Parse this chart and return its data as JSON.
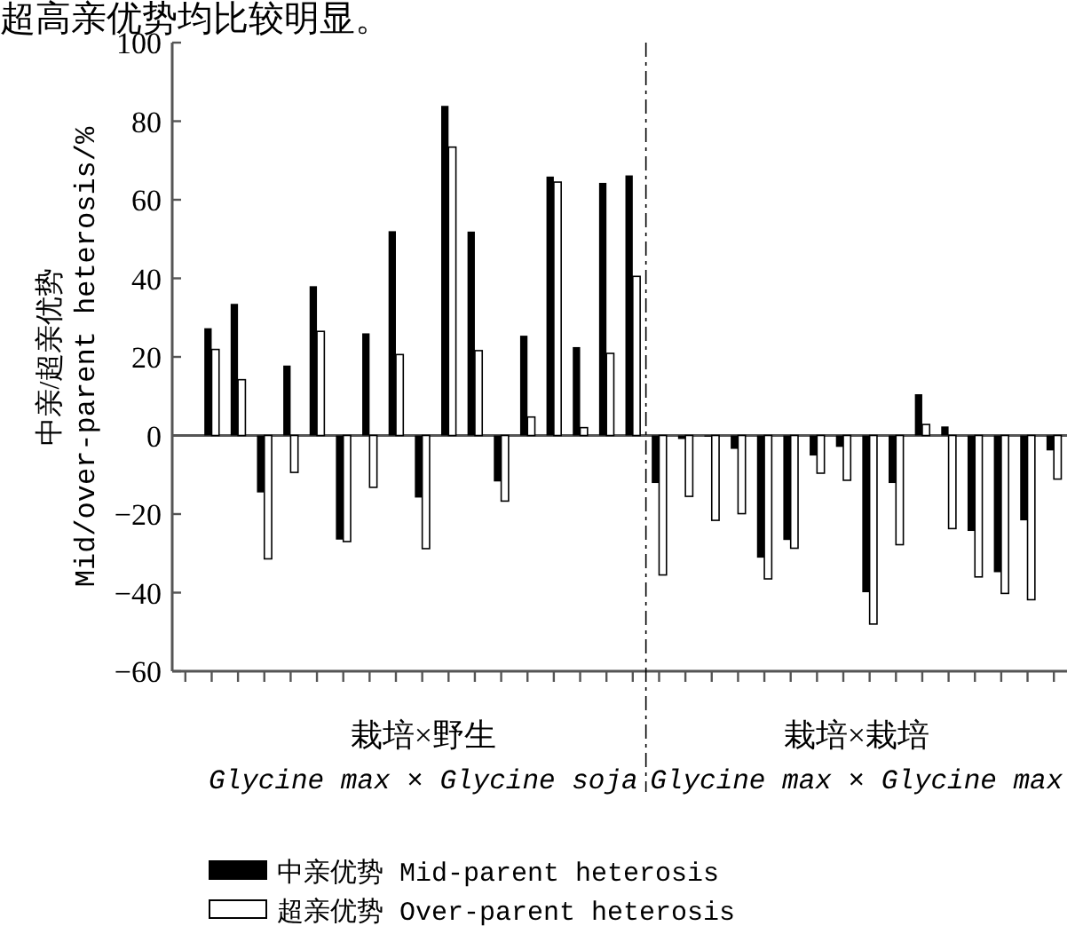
{
  "chart_data": {
    "type": "bar",
    "ylabel": "中亲/超亲优势\nMid/over-parent heterosis/%",
    "categories": [
      null,
      null,
      null,
      null,
      null,
      null,
      null,
      null,
      null,
      null,
      null,
      null,
      null,
      null,
      null,
      null,
      null,
      null,
      null,
      null,
      null,
      null,
      null,
      null,
      null,
      null,
      null,
      null,
      null,
      null,
      null,
      null,
      null,
      null
    ],
    "series": [
      {
        "name": "中亲优势  Mid-parent heterosis",
        "color": "#000000",
        "values": [
          null,
          27.3,
          33.5,
          -14.5,
          17.8,
          38,
          -26.5,
          26,
          52,
          -15.8,
          83.9,
          51.9,
          -11.7,
          25.4,
          65.9,
          22.5,
          64.3,
          66.2,
          -12.1,
          -0.9,
          -0.3,
          -3.4,
          -31.1,
          -26.6,
          -5.1,
          -2.9,
          -39.9,
          -12.1,
          10.5,
          2.3,
          -24.3,
          -34.8,
          -21.6,
          -3.8
        ]
      },
      {
        "name": "超亲优势  Over-parent heterosis",
        "color": "#ffffff",
        "values": [
          null,
          21.9,
          14.2,
          -31.4,
          -9.4,
          26.5,
          -27,
          -13.2,
          20.6,
          -28.8,
          73.4,
          21.6,
          -16.7,
          4.7,
          64.5,
          2,
          20.9,
          40.5,
          -35.5,
          -15.5,
          -21.6,
          -19.9,
          -36.5,
          -28.7,
          -9.6,
          -11.4,
          -48,
          -27.8,
          2.8,
          -23.7,
          -36,
          -40.2,
          -41.8,
          -11.1
        ]
      }
    ],
    "ylim": [
      -60,
      100
    ],
    "yticks": [
      -60,
      -40,
      -20,
      0,
      20,
      40,
      60,
      80,
      100
    ],
    "annotations": [
      "超高亲优势均比较明显。",
      "栽培×野生",
      "Glycine max × Glycine soja",
      "栽培×栽培",
      "Glycine max × Glycine max"
    ],
    "legend": "bottom"
  }
}
